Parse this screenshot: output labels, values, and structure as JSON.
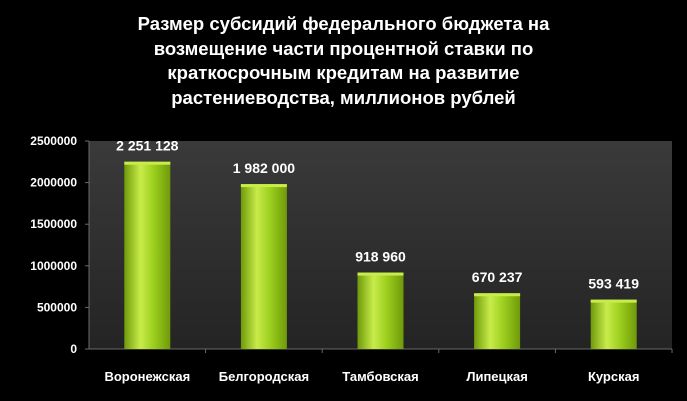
{
  "chart_data": {
    "type": "bar",
    "title_lines": [
      "Размер субсидий федерального бюджета на",
      "возмещение части процентной ставки по",
      "краткосрочным кредитам на развитие",
      "растениеводства, миллионов рублей"
    ],
    "categories": [
      "Воронежская",
      "Белгородская",
      "Тамбовская",
      "Липецкая",
      "Курская"
    ],
    "values": [
      2251128,
      1982000,
      918960,
      670237,
      593419
    ],
    "data_labels": [
      "2 251 128",
      "1 982 000",
      "918 960",
      "670 237",
      "593 419"
    ],
    "yticks": [
      "0",
      "500000",
      "1000000",
      "1500000",
      "2000000",
      "2500000"
    ],
    "ylim": [
      0,
      2500000
    ],
    "xlabel": "",
    "ylabel": "",
    "grid": false,
    "colors": {
      "bar": "#9acd1c",
      "bar_light": "#c8ec4a",
      "bar_dark": "#6f9a0a",
      "plot_bg_top": "#3a3a3a",
      "plot_bg_bottom": "#242424",
      "background": "#000000",
      "text": "#ffffff"
    }
  }
}
